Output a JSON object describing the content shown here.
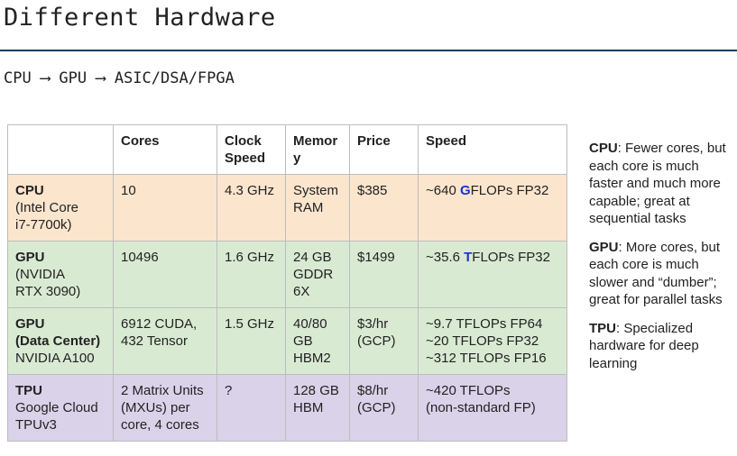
{
  "title": "Different Hardware",
  "subtitle": "CPU ⟶ GPU ⟶ ASIC/DSA/FPGA",
  "table": {
    "headers": [
      "",
      "Cores",
      "Clock Speed",
      "Memor y",
      "Price",
      "Speed"
    ],
    "rows": [
      {
        "name": "CPU",
        "detail1": "(Intel Core",
        "detail2": "i7-7700k)",
        "cores": "10",
        "clock": "4.3 GHz",
        "memory1": "System",
        "memory2": "RAM",
        "price": "$385",
        "speed_pre": "~640 ",
        "speed_hl": "G",
        "speed_post": "FLOPs FP32",
        "highlight_color": "#1a33cc"
      },
      {
        "name": "GPU",
        "detail1": "(NVIDIA",
        "detail2": "RTX 3090)",
        "cores": "10496",
        "clock": "1.6 GHz",
        "memory1": "24 GB",
        "memory2": "GDDR",
        "memory3": "6X",
        "price": "$1499",
        "speed_pre": "~35.6 ",
        "speed_hl": "T",
        "speed_post": "FLOPs FP32",
        "highlight_color": "#1a33cc"
      },
      {
        "name": "GPU",
        "name2": "(Data Center)",
        "detail1": "NVIDIA A100",
        "cores1": "6912 CUDA,",
        "cores2": "432 Tensor",
        "clock": "1.5 GHz",
        "memory1": "40/80",
        "memory2": "GB",
        "memory3": "HBM2",
        "price1": "$3/hr",
        "price2": "(GCP)",
        "speed1": "~9.7 TFLOPs FP64",
        "speed2": "~20 TFLOPs FP32",
        "speed3": "~312 TFLOPs FP16"
      },
      {
        "name": "TPU",
        "detail1": "Google Cloud",
        "detail2": "TPUv3",
        "cores1": "2 Matrix Units",
        "cores2": "(MXUs) per",
        "cores3": "core, 4 cores",
        "clock": "?",
        "memory1": "128 GB",
        "memory2": "HBM",
        "price1": "$8/hr",
        "price2": "(GCP)",
        "speed1": "~420 TFLOPs",
        "speed2": "(non-standard FP)"
      }
    ]
  },
  "notes": [
    {
      "term": "CPU",
      "text": ": Fewer cores, but each core is much faster and much more capable; great at sequential tasks"
    },
    {
      "term": "GPU",
      "text": ": More cores, but each core is much slower and “dumber”; great for parallel tasks"
    },
    {
      "term": "TPU",
      "text": ": Specialized hardware for deep learning"
    }
  ],
  "colors": {
    "cpu_row": "#fce5cd",
    "gpu_row": "#d9ead3",
    "tpu_row": "#d9d2e9",
    "rule": "#1d3b5c",
    "highlight": "#1a33cc"
  }
}
